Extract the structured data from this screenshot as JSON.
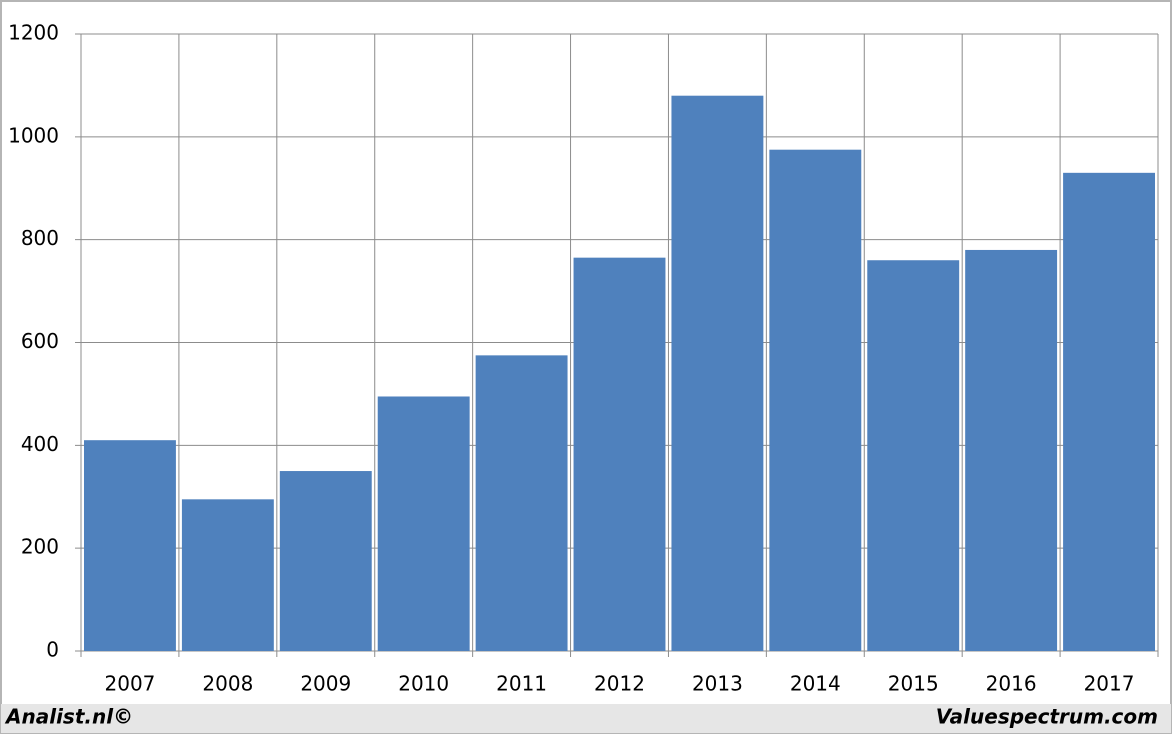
{
  "chart_data": {
    "type": "bar",
    "categories": [
      "2007",
      "2008",
      "2009",
      "2010",
      "2011",
      "2012",
      "2013",
      "2014",
      "2015",
      "2016",
      "2017"
    ],
    "values": [
      410,
      295,
      350,
      495,
      575,
      765,
      1080,
      975,
      760,
      780,
      930
    ],
    "color": "#4f81bd",
    "ylim": [
      0,
      1200
    ],
    "yticks": [
      0,
      200,
      400,
      600,
      800,
      1000,
      1200
    ],
    "grid": true
  },
  "footer": {
    "left": "Analist.nl©",
    "right": "Valuespectrum.com"
  }
}
